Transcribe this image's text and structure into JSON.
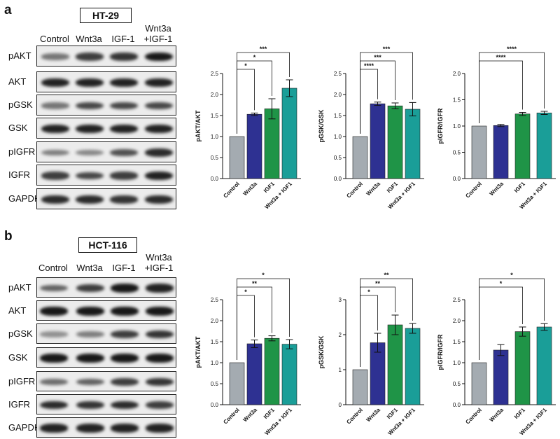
{
  "panels": [
    {
      "letter": "a",
      "cell_line": "HT-29",
      "lanes": [
        "Control",
        "Wnt3a",
        "IGF-1",
        "Wnt3a\n+IGF-1"
      ],
      "blots": [
        {
          "label": "pAKT",
          "intensity": [
            0.45,
            0.75,
            0.8,
            0.95
          ]
        },
        {
          "label": "AKT",
          "intensity": [
            0.9,
            0.9,
            0.9,
            0.9
          ]
        },
        {
          "label": "pGSK",
          "intensity": [
            0.45,
            0.7,
            0.7,
            0.7
          ]
        },
        {
          "label": "GSK",
          "intensity": [
            0.9,
            0.9,
            0.9,
            0.9
          ]
        },
        {
          "label": "pIGFR",
          "intensity": [
            0.4,
            0.35,
            0.65,
            0.85
          ]
        },
        {
          "label": "IGFR",
          "intensity": [
            0.75,
            0.7,
            0.75,
            0.9
          ]
        },
        {
          "label": "GAPDH",
          "intensity": [
            0.85,
            0.85,
            0.8,
            0.85
          ]
        }
      ]
    },
    {
      "letter": "b",
      "cell_line": "HCT-116",
      "lanes": [
        "Control",
        "Wnt3a",
        "IGF-1",
        "Wnt3a\n+IGF-1"
      ],
      "blots": [
        {
          "label": "pAKT",
          "intensity": [
            0.55,
            0.75,
            0.95,
            0.9
          ]
        },
        {
          "label": "AKT",
          "intensity": [
            0.95,
            0.95,
            0.95,
            0.95
          ]
        },
        {
          "label": "pGSK",
          "intensity": [
            0.3,
            0.4,
            0.75,
            0.8
          ]
        },
        {
          "label": "GSK",
          "intensity": [
            0.95,
            0.95,
            0.95,
            0.95
          ]
        },
        {
          "label": "pIGFR",
          "intensity": [
            0.5,
            0.55,
            0.75,
            0.8
          ]
        },
        {
          "label": "IGFR",
          "intensity": [
            0.85,
            0.8,
            0.85,
            0.75
          ]
        },
        {
          "label": "GAPDH",
          "intensity": [
            0.9,
            0.9,
            0.9,
            0.9
          ]
        }
      ]
    }
  ],
  "chart_data": [
    {
      "type": "bar",
      "categories": [
        "Control",
        "Wnt3a",
        "IGF1",
        "Wnt3a + IGF1"
      ],
      "ylabel": "pAKT/AKT",
      "ylim": [
        0,
        2.5
      ],
      "yticks": [
        "0.0",
        "0.5",
        "1.0",
        "1.5",
        "2.0",
        "2.5"
      ],
      "values": [
        1.0,
        1.53,
        1.66,
        2.15
      ],
      "errors": [
        0,
        0.03,
        0.24,
        0.2
      ],
      "significance": [
        {
          "to": 1,
          "label": "*"
        },
        {
          "to": 2,
          "label": "*"
        },
        {
          "to": 3,
          "label": "***"
        }
      ]
    },
    {
      "type": "bar",
      "categories": [
        "Control",
        "Wnt3a",
        "IGF1",
        "Wnt3a + IGF1"
      ],
      "ylabel": "pGSK/GSK",
      "ylim": [
        0,
        2.5
      ],
      "yticks": [
        "0.0",
        "0.5",
        "1.0",
        "1.5",
        "2.0",
        "2.5"
      ],
      "values": [
        1.0,
        1.78,
        1.73,
        1.65
      ],
      "errors": [
        0,
        0.04,
        0.07,
        0.16
      ],
      "significance": [
        {
          "to": 1,
          "label": "****"
        },
        {
          "to": 2,
          "label": "***"
        },
        {
          "to": 3,
          "label": "***"
        }
      ]
    },
    {
      "type": "bar",
      "categories": [
        "Control",
        "Wnt3a",
        "IGF1",
        "Wnt3a + IGF1"
      ],
      "ylabel": "pIGFR/IGFR",
      "ylim": [
        0,
        2.0
      ],
      "yticks": [
        "0.0",
        "0.5",
        "1.0",
        "1.5",
        "2.0"
      ],
      "values": [
        1.0,
        1.01,
        1.23,
        1.25
      ],
      "errors": [
        0,
        0.02,
        0.03,
        0.03
      ],
      "significance": [
        {
          "to": 2,
          "label": "****"
        },
        {
          "to": 3,
          "label": "****"
        }
      ]
    },
    {
      "type": "bar",
      "categories": [
        "Control",
        "Wnt3a",
        "IGF1",
        "Wnt3a + IGF1"
      ],
      "ylabel": "pAKT/AKT",
      "ylim": [
        0,
        2.5
      ],
      "yticks": [
        "0.0",
        "0.5",
        "1.0",
        "1.5",
        "2.0",
        "2.5"
      ],
      "values": [
        1.0,
        1.45,
        1.58,
        1.44
      ],
      "errors": [
        0,
        0.09,
        0.06,
        0.11
      ],
      "significance": [
        {
          "to": 1,
          "label": "*"
        },
        {
          "to": 2,
          "label": "**"
        },
        {
          "to": 3,
          "label": "*"
        }
      ]
    },
    {
      "type": "bar",
      "categories": [
        "Control",
        "Wnt3a",
        "IGF1",
        "Wnt3a + IGF1"
      ],
      "ylabel": "pGSK/GSK",
      "ylim": [
        0,
        3
      ],
      "yticks": [
        "0",
        "1",
        "2",
        "3"
      ],
      "values": [
        1.0,
        1.77,
        2.28,
        2.18
      ],
      "errors": [
        0,
        0.27,
        0.28,
        0.14
      ],
      "significance": [
        {
          "to": 1,
          "label": "*"
        },
        {
          "to": 2,
          "label": "**"
        },
        {
          "to": 3,
          "label": "**"
        }
      ]
    },
    {
      "type": "bar",
      "categories": [
        "Control",
        "Wnt3a",
        "IGF1",
        "Wnt3a + IGF1"
      ],
      "ylabel": "pIGFR/IGFR",
      "ylim": [
        0,
        2.5
      ],
      "yticks": [
        "0.0",
        "0.5",
        "1.0",
        "1.5",
        "2.0",
        "2.5"
      ],
      "values": [
        1.0,
        1.3,
        1.74,
        1.85
      ],
      "errors": [
        0,
        0.13,
        0.11,
        0.08
      ],
      "significance": [
        {
          "to": 2,
          "label": "*"
        },
        {
          "to": 3,
          "label": "*"
        }
      ]
    }
  ],
  "colors": {
    "Control": "#a4abb1",
    "Wnt3a": "#2e3192",
    "IGF1": "#1f9447",
    "Wnt3a + IGF1": "#1a9e98"
  }
}
